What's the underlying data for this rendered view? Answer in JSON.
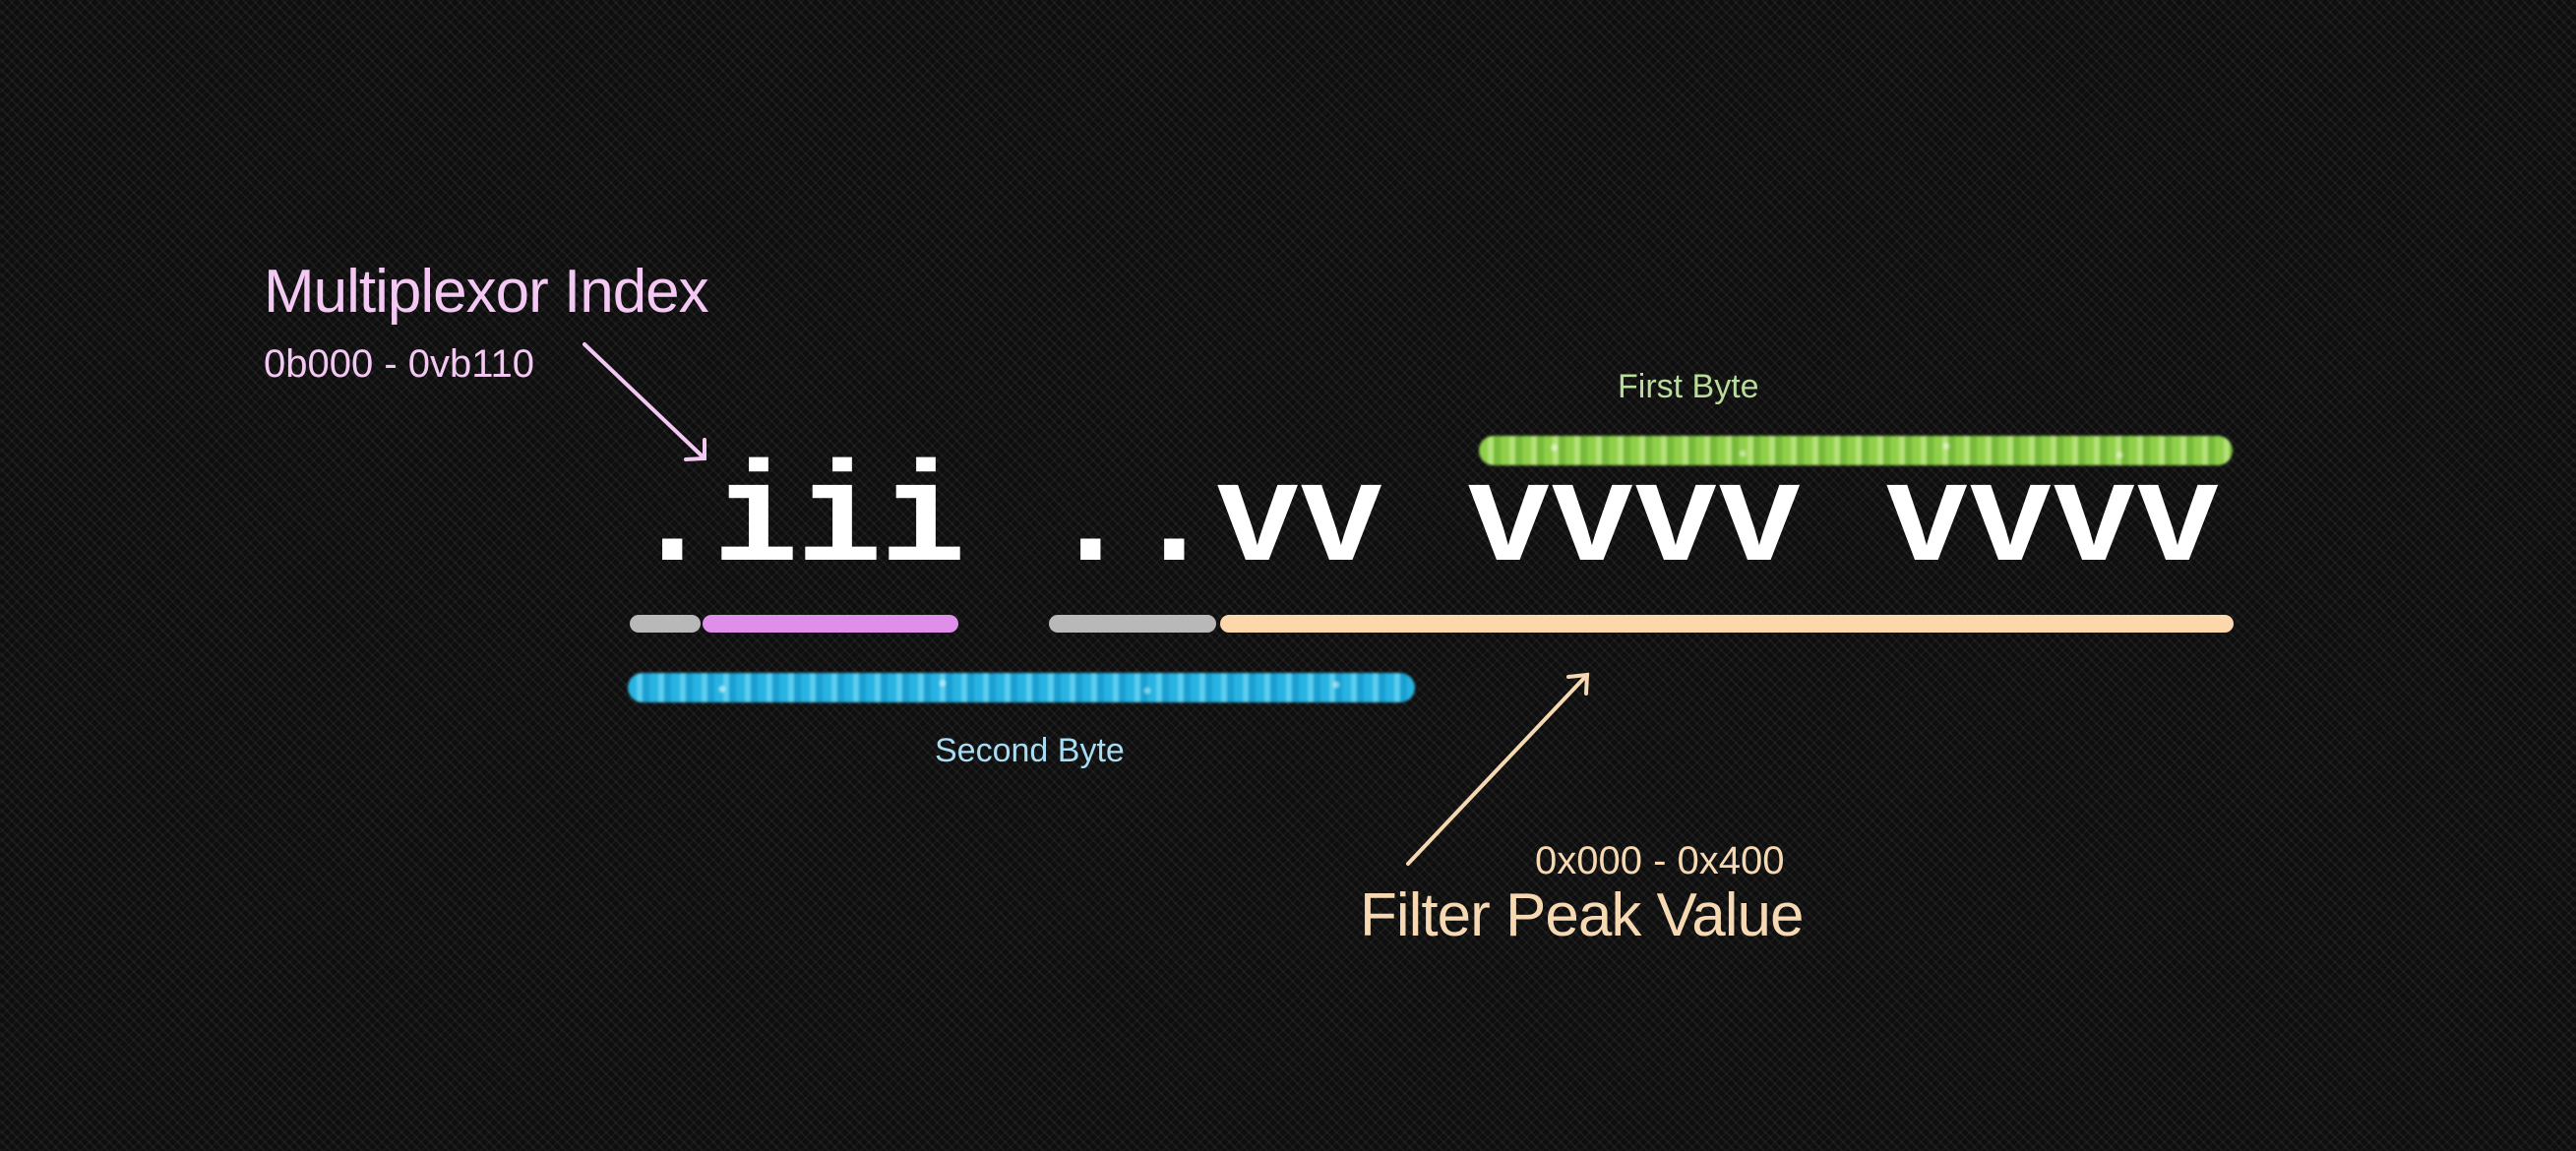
{
  "bit_layout": {
    "pattern": ".iii ..vv vvvv vvvv"
  },
  "multiplexor": {
    "title": "Multiplexor Index",
    "range": "0b000 - 0vb110",
    "color": "#f3c8f3",
    "bar_color": "#df8fea"
  },
  "first_byte": {
    "label": "First Byte",
    "color": "#b9dc9b",
    "bracket_color": "#8fcf4a"
  },
  "second_byte": {
    "label": "Second Byte",
    "color": "#a8dcf2",
    "bracket_color": "#28b3e2"
  },
  "filter_peak": {
    "title": "Filter Peak Value",
    "range": "0x000 - 0x400",
    "color": "#f6d9b2",
    "bar_color": "#fbd7ab"
  },
  "unused_bits": {
    "bar_color": "#b8b8b8"
  },
  "background": "#0e0e0e"
}
